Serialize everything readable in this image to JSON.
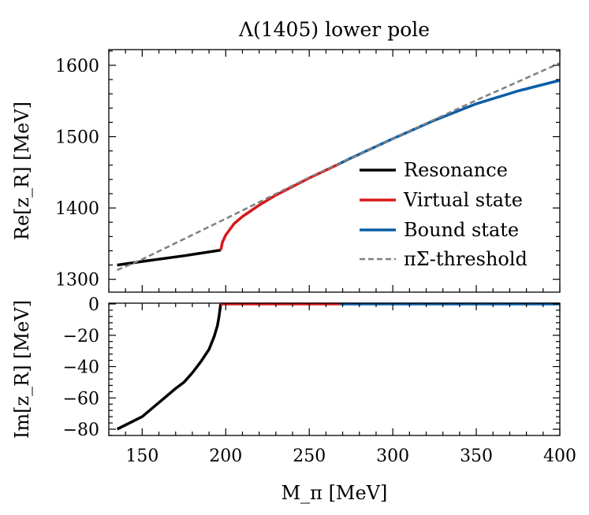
{
  "chart_data": {
    "type": "line",
    "title": "Λ(1405) lower pole",
    "xlabel": "M_π [MeV]",
    "xlim": [
      130,
      400
    ],
    "x_ticks": [
      150,
      200,
      250,
      300,
      350,
      400
    ],
    "x_tick_labels": [
      "150",
      "200",
      "250",
      "300",
      "350",
      "400"
    ],
    "colors": {
      "resonance": "#000000",
      "virtual": "#d7191c",
      "bound": "#0b5da8",
      "threshold": "#7f7f7f"
    },
    "panels": [
      {
        "id": "re",
        "ylabel": "Re[z_R] [MeV]",
        "ylim": [
          1282,
          1622
        ],
        "y_ticks": [
          1300,
          1400,
          1500,
          1600
        ],
        "y_tick_labels": [
          "1300",
          "1400",
          "1500",
          "1600"
        ],
        "series": [
          {
            "name": "Resonance",
            "style": "solid",
            "color_key": "resonance",
            "x": [
              135,
              150,
              175,
              197
            ],
            "y": [
              1320,
              1325,
              1333,
              1341
            ]
          },
          {
            "name": "Virtual state",
            "style": "solid",
            "color_key": "virtual",
            "x": [
              197,
              197.5,
              198,
              200,
              205,
              210,
              220,
              230,
              240,
              250,
              260,
              268
            ],
            "y": [
              1341,
              1346,
              1352,
              1362,
              1378,
              1388,
              1404,
              1418,
              1430,
              1442,
              1453,
              1462
            ]
          },
          {
            "name": "Bound state",
            "style": "solid",
            "color_key": "bound",
            "x": [
              268,
              275,
              300,
              325,
              350,
              375,
              400
            ],
            "y": [
              1462,
              1470,
              1497,
              1523,
              1546,
              1564,
              1579
            ]
          },
          {
            "name": "πΣ-threshold",
            "style": "dashed",
            "color_key": "threshold",
            "x": [
              135,
              150,
              200,
              250,
              300,
              350,
              400
            ],
            "y": [
              1313,
              1328,
              1385,
              1443,
              1497,
              1551,
              1603
            ]
          }
        ]
      },
      {
        "id": "im",
        "ylabel": "Im[z_R] [MeV]",
        "ylim": [
          -84,
          0.5
        ],
        "y_ticks": [
          -80,
          -60,
          -40,
          -20,
          0
        ],
        "y_tick_labels": [
          "−80",
          "−60",
          "−40",
          "−20",
          "0"
        ],
        "series": [
          {
            "name": "Resonance",
            "style": "solid",
            "color_key": "resonance",
            "x": [
              135,
              150,
              160,
              170,
              175,
              180,
              185,
              190,
              193,
              195,
              196,
              196.6,
              197
            ],
            "y": [
              -80,
              -72,
              -63,
              -54,
              -50,
              -44,
              -37,
              -29,
              -21,
              -14,
              -8,
              -3,
              0
            ]
          },
          {
            "name": "Virtual state",
            "style": "solid",
            "color_key": "virtual",
            "x": [
              197,
              268
            ],
            "y": [
              0,
              0
            ]
          },
          {
            "name": "Bound state",
            "style": "solid",
            "color_key": "bound",
            "x": [
              268,
              400
            ],
            "y": [
              0,
              0
            ]
          }
        ]
      }
    ],
    "legend": {
      "placement": "center-right of upper panel",
      "entries": [
        {
          "label": "Resonance",
          "color_key": "resonance",
          "style": "solid"
        },
        {
          "label": "Virtual state",
          "color_key": "virtual",
          "style": "solid"
        },
        {
          "label": "Bound state",
          "color_key": "bound",
          "style": "solid"
        },
        {
          "label": "πΣ-threshold",
          "color_key": "threshold",
          "style": "dashed"
        }
      ]
    }
  }
}
